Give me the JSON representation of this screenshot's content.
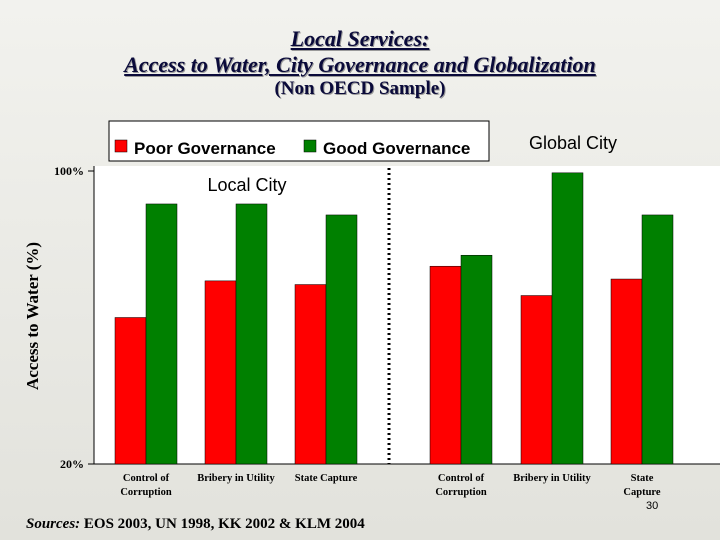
{
  "slide": {
    "title": "Local Services:",
    "title2": "Access to Water, City Governance and Globalization",
    "subtitle": "(Non OECD Sample)",
    "source_label": "Sources:",
    "source_text": "EOS 2003, UN 1998, KK 2002 & KLM 2004",
    "page_number": "30"
  },
  "chart_data": {
    "type": "bar",
    "ylabel": "Access to Water (%)",
    "ylim": [
      20,
      100
    ],
    "yticks": [
      "100%",
      "20%"
    ],
    "groups": [
      {
        "label": "Local City",
        "categories": [
          "Control of Corruption",
          "Bribery in Utility",
          "State Capture"
        ],
        "category_lines": [
          [
            "Control of",
            "Corruption"
          ],
          [
            "Bribery in Utility"
          ],
          [
            "State Capture"
          ]
        ]
      },
      {
        "label": "Global City",
        "categories": [
          "Control of Corruption",
          "Bribery in Utility",
          "State Capture"
        ],
        "category_lines": [
          [
            "Control of",
            "Corruption"
          ],
          [
            "Bribery in Utility"
          ],
          [
            "State",
            "Capture"
          ]
        ]
      }
    ],
    "series": [
      {
        "name": "Poor Governance",
        "color": "#ff0000",
        "values": [
          60,
          70,
          69,
          74,
          66,
          70.5
        ]
      },
      {
        "name": "Good Governance",
        "color": "#008000",
        "values": [
          91,
          91,
          88,
          77,
          99.5,
          88
        ]
      }
    ],
    "legend_position": "top-left",
    "divider": "dotted line between groups",
    "grid": false
  }
}
